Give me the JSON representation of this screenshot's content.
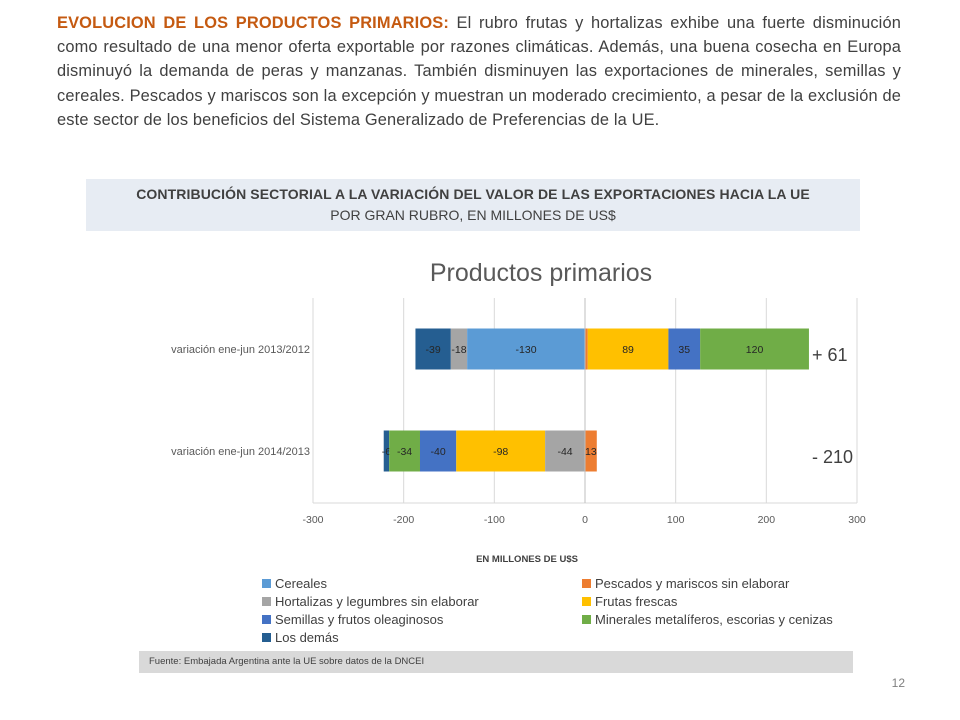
{
  "intro": {
    "lead": "EVOLUCION DE LOS PRODUCTOS PRIMARIOS:",
    "body": " El rubro frutas y hortalizas exhibe una fuerte disminución como resultado de una menor oferta exportable por razones climáticas. Además, una buena cosecha en Europa disminuyó la demanda de peras y manzanas. También disminuyen las exportaciones de minerales, semillas y cereales. Pescados y  mariscos son la excepción y muestran un moderado crecimiento, a pesar de la exclusión de este sector de los beneficios del Sistema Generalizado de Preferencias de la UE."
  },
  "banner": {
    "title": "CONTRIBUCIÓN SECTORIAL A LA VARIACIÓN DEL VALOR DE LAS EXPORTACIONES HACIA LA UE",
    "subtitle": "POR GRAN RUBRO, EN MILLONES DE US$"
  },
  "chart_data": {
    "type": "bar",
    "orientation": "horizontal",
    "stacked": true,
    "title": "Productos primarios",
    "xlabel": "EN MILLONES DE U$S",
    "xlim": [
      -300,
      300
    ],
    "xticks": [
      -300,
      -200,
      -100,
      0,
      100,
      200,
      300
    ],
    "grid": "vertical",
    "legend_position": "bottom",
    "categories": [
      "variación ene-jun 2013/2012",
      "variación ene-jun 2014/2013"
    ],
    "totals": [
      "+ 61",
      "- 210"
    ],
    "series": [
      {
        "name": "Cereales",
        "color": "#5b9bd5",
        "values": [
          -130,
          null
        ]
      },
      {
        "name": "Pescados y mariscos sin elaborar",
        "color": "#ed7d31",
        "values": [
          3,
          13
        ]
      },
      {
        "name": "Hortalizas y legumbres sin elaborar",
        "color": "#a5a5a5",
        "values": [
          -18,
          -44
        ]
      },
      {
        "name": "Frutas frescas",
        "color": "#ffc000",
        "values": [
          89,
          -98
        ]
      },
      {
        "name": "Semillas y frutos oleaginosos",
        "color": "#4472c4",
        "values": [
          35,
          -40
        ]
      },
      {
        "name": "Minerales metalíferos, escorias y cenizas",
        "color": "#70ad47",
        "values": [
          120,
          -34
        ]
      },
      {
        "name": "Los demás",
        "color": "#255e91",
        "values": [
          -39,
          -6
        ]
      }
    ],
    "stack_order": [
      [
        "Los demás",
        "Hortalizas y legumbres sin elaborar",
        "Cereales",
        "Pescados y mariscos sin elaborar",
        "Frutas frescas",
        "Semillas y frutos oleaginosos",
        "Minerales metalíferos, escorias y cenizas"
      ],
      [
        "Los demás",
        "Minerales metalíferos, escorias y cenizas",
        "Semillas y frutos oleaginosos",
        "Frutas frescas",
        "Hortalizas y legumbres sin elaborar",
        "Pescados y mariscos sin elaborar"
      ]
    ],
    "label_colors": {
      "Los demás": "#262626",
      "Semillas y frutos oleaginosos": "#262626"
    }
  },
  "source": "Fuente: Embajada  Argentina ante la UE sobre datos de la DNCEI",
  "page_number": "12"
}
